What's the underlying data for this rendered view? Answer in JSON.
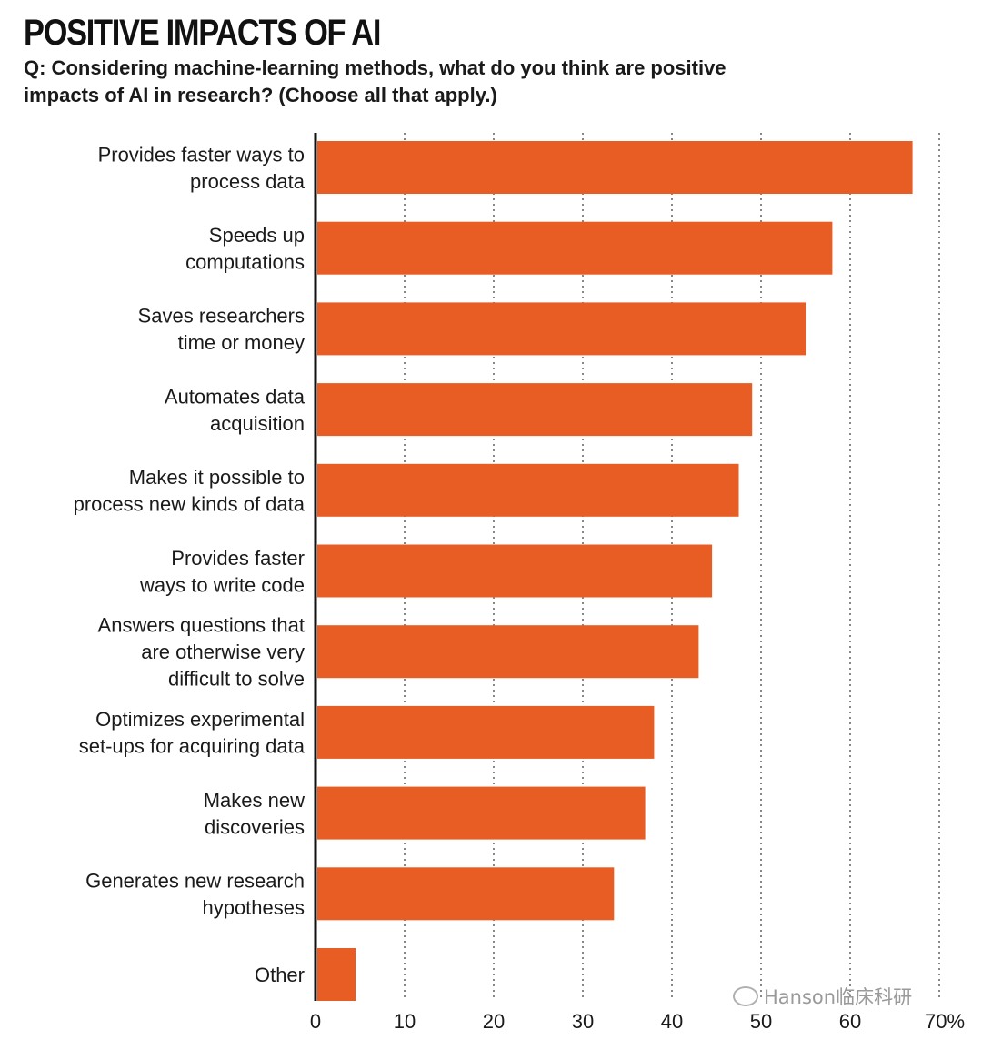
{
  "header": {
    "title": "POSITIVE IMPACTS OF AI",
    "subtitle": "Q: Considering machine-learning methods, what do you think are positive impacts of AI in research? (Choose all that apply.)"
  },
  "chart_data": {
    "type": "bar",
    "orientation": "horizontal",
    "categories": [
      [
        "Provides faster ways to",
        "process data"
      ],
      [
        "Speeds up",
        "computations"
      ],
      [
        "Saves researchers",
        "time or money"
      ],
      [
        "Automates data",
        "acquisition"
      ],
      [
        "Makes it possible to",
        "process new kinds of data"
      ],
      [
        "Provides faster",
        "ways to write code"
      ],
      [
        "Answers questions that",
        "are otherwise very",
        "difficult to solve"
      ],
      [
        "Optimizes experimental",
        "set-ups for acquiring data"
      ],
      [
        "Makes new",
        "discoveries"
      ],
      [
        "Generates new research",
        "hypotheses"
      ],
      [
        "Other"
      ]
    ],
    "values": [
      67,
      58,
      55,
      49,
      47.5,
      44.5,
      43,
      38,
      37,
      33.5,
      4.5
    ],
    "xlim": [
      0,
      70
    ],
    "xticks": [
      "0",
      "10",
      "20",
      "30",
      "40",
      "50",
      "60",
      "70%"
    ],
    "grid": "vertical dotted",
    "bar_color": "#e85d24"
  },
  "watermark": {
    "text": "Hanson临床科研"
  }
}
